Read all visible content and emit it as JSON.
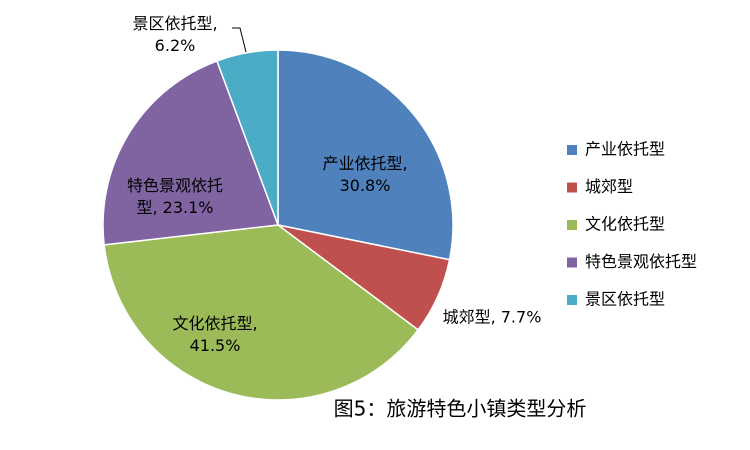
{
  "chart_data": {
    "type": "pie",
    "title": "图5：旅游特色小镇类型分析",
    "categories": [
      "产业依托型",
      "城郊型",
      "文化依托型",
      "特色景观依托型",
      "景区依托型"
    ],
    "values": [
      30.8,
      7.7,
      41.5,
      23.1,
      6.2
    ],
    "value_labels": [
      "产业依托型,\n30.8%",
      "城郊型, 7.7%",
      "文化依托型,\n41.5%",
      "特色景观依托\n型, 23.1%",
      "景区依托型,\n6.2%"
    ],
    "colors": [
      "#4f81bd",
      "#c0504d",
      "#9bbb59",
      "#8064a2",
      "#4bacc6"
    ],
    "legend": "right"
  }
}
